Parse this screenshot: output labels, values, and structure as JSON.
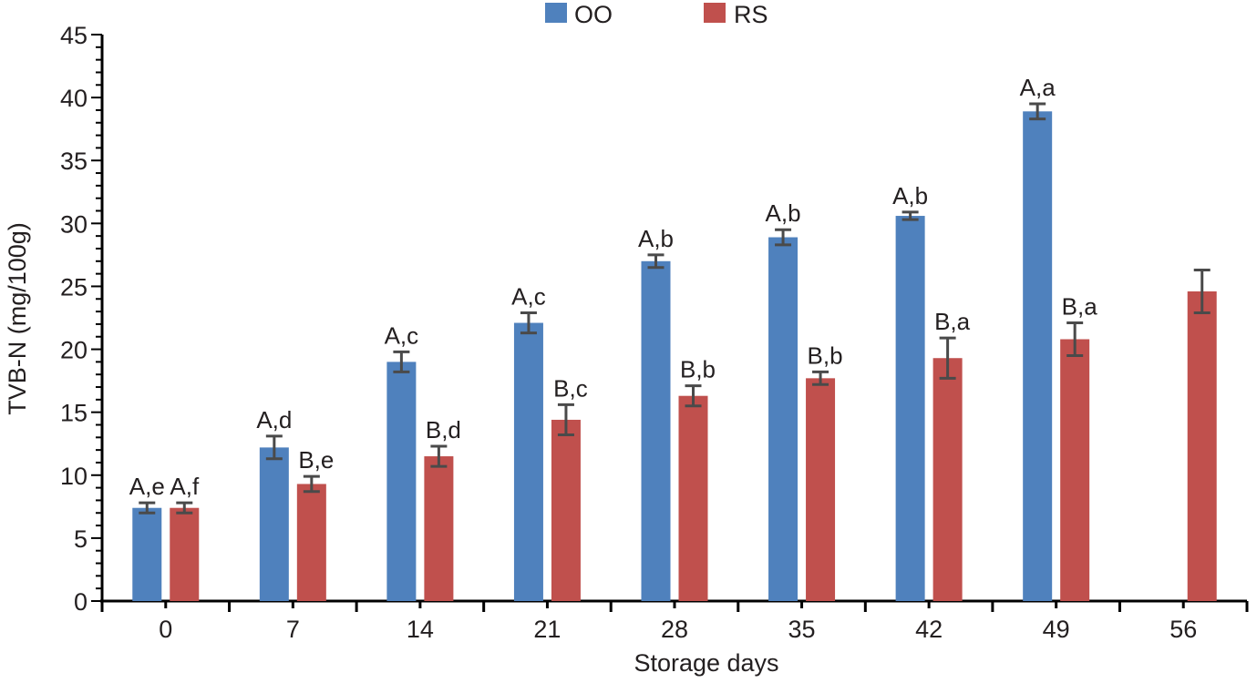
{
  "chart_data": {
    "type": "bar",
    "title": "",
    "xlabel": "Storage days",
    "ylabel": "TVB-N (mg/100g)",
    "ylim": [
      0,
      45
    ],
    "yticks": [
      0,
      5,
      10,
      15,
      20,
      25,
      30,
      35,
      40,
      45
    ],
    "categories": [
      "0",
      "7",
      "14",
      "21",
      "28",
      "35",
      "42",
      "49",
      "56"
    ],
    "legend_position": "top-center",
    "series": [
      {
        "name": "OO",
        "color": "#4f81bd",
        "values": [
          7.4,
          12.2,
          19.0,
          22.1,
          27.0,
          28.9,
          30.6,
          38.9,
          null
        ],
        "errors": [
          0.4,
          0.9,
          0.8,
          0.8,
          0.5,
          0.6,
          0.3,
          0.6,
          null
        ],
        "labels": [
          "A,e",
          "A,d",
          "A,c",
          "A,c",
          "A,b",
          "A,b",
          "A,b",
          "A,a",
          ""
        ]
      },
      {
        "name": "RS",
        "color": "#c0504d",
        "values": [
          7.4,
          9.3,
          11.5,
          14.4,
          16.3,
          17.7,
          19.3,
          20.8,
          24.6
        ],
        "errors": [
          0.4,
          0.6,
          0.8,
          1.2,
          0.8,
          0.5,
          1.6,
          1.3,
          1.7
        ],
        "labels": [
          "A,f",
          "B,e",
          "B,d",
          "B,c",
          "B,b",
          "B,b",
          "B,a",
          "B,a",
          ""
        ]
      }
    ]
  }
}
